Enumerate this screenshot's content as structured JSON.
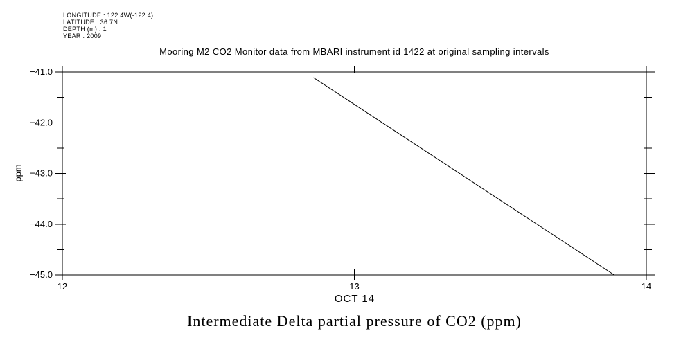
{
  "window": {
    "background_color": "#ffffff",
    "foreground_color": "#000000"
  },
  "metadata": {
    "longitude": "LONGITUDE : 122.4W(-122.4)",
    "latitude": "LATITUDE : 36.7N",
    "depth": "DEPTH (m) : 1",
    "year": "YEAR : 2009"
  },
  "chart_data": {
    "type": "line",
    "title": "Mooring M2 CO2 Monitor data from MBARI instrument id 1422 at original sampling intervals",
    "caption": "Intermediate Delta partial pressure of CO2 (ppm)",
    "ylabel": "ppm",
    "xlabel": "OCT 14",
    "xlim": [
      12,
      14
    ],
    "ylim": [
      -45,
      -41
    ],
    "grid": false,
    "legend": "none",
    "line_color": "#000000",
    "xticks": [
      {
        "value": 12,
        "label": "12"
      },
      {
        "value": 13,
        "label": "13"
      },
      {
        "value": 14,
        "label": "14"
      }
    ],
    "yticks": [
      {
        "value": -41.0,
        "label": "−41.0"
      },
      {
        "value": -42.0,
        "label": "−42.0"
      },
      {
        "value": -43.0,
        "label": "−43.0"
      },
      {
        "value": -44.0,
        "label": "−44.0"
      },
      {
        "value": -45.0,
        "label": "−45.0"
      }
    ],
    "yticks_minor": [
      -44.5,
      -43.5,
      -42.5,
      -41.5
    ],
    "series": [
      {
        "name": "Intermediate Delta partial pressure of CO2 (ppm)",
        "points": [
          {
            "x": 12.86,
            "y": -41.11
          },
          {
            "x": 13.89,
            "y": -45.0
          }
        ]
      }
    ]
  }
}
